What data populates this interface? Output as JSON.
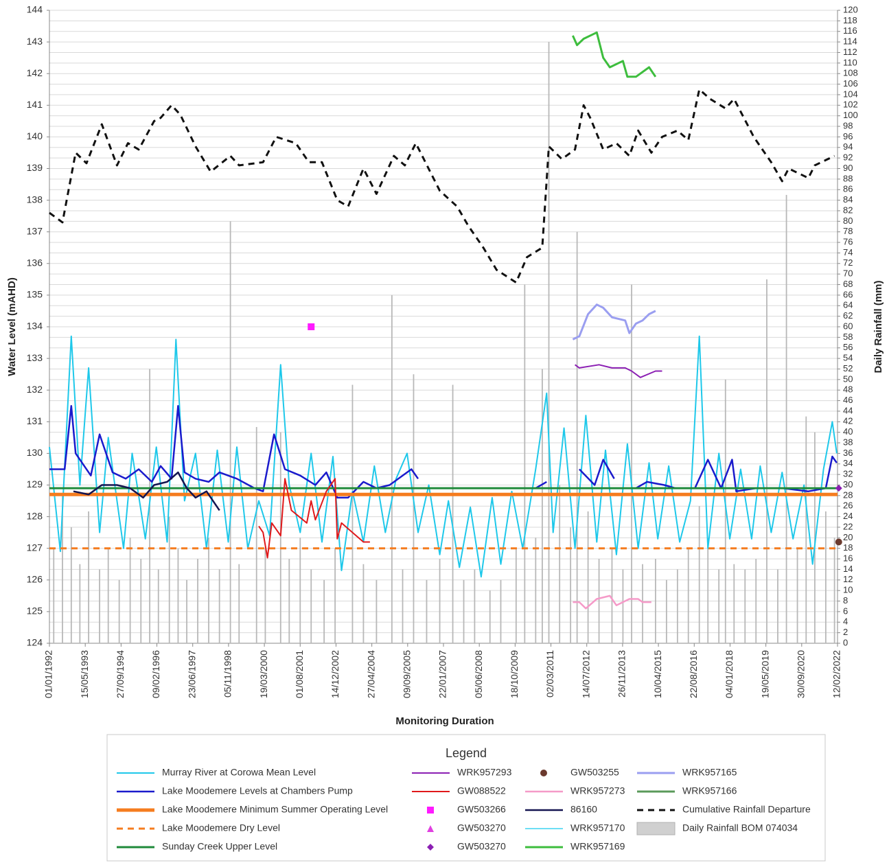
{
  "chart_data": {
    "type": "combo",
    "x_label": "Monitoring Duration",
    "y_label": "Water Level (mAHD)",
    "y2_label": "Daily Rainfall (mm)",
    "legend_title": "Legend",
    "xlim": [
      "01/01/1992",
      "12/02/2022"
    ],
    "xticks": [
      "01/01/1992",
      "15/05/1993",
      "27/09/1994",
      "09/02/1996",
      "23/06/1997",
      "05/11/1998",
      "19/03/2000",
      "01/08/2001",
      "14/12/2002",
      "27/04/2004",
      "09/09/2005",
      "22/01/2007",
      "05/06/2008",
      "18/10/2009",
      "02/03/2011",
      "14/07/2012",
      "26/11/2013",
      "10/04/2015",
      "22/08/2016",
      "04/01/2018",
      "19/05/2019",
      "30/09/2020",
      "12/02/2022"
    ],
    "ylim": [
      124,
      144
    ],
    "yticks": [
      124,
      125,
      126,
      127,
      128,
      129,
      130,
      131,
      132,
      133,
      134,
      135,
      136,
      137,
      138,
      139,
      140,
      141,
      142,
      143,
      144
    ],
    "y2lim": [
      0,
      120
    ],
    "y2ticks": [
      0,
      2,
      4,
      6,
      8,
      10,
      12,
      14,
      16,
      18,
      20,
      22,
      24,
      26,
      28,
      30,
      32,
      34,
      36,
      38,
      40,
      42,
      44,
      46,
      48,
      50,
      52,
      54,
      56,
      58,
      60,
      62,
      64,
      66,
      68,
      70,
      72,
      74,
      76,
      78,
      80,
      82,
      84,
      86,
      88,
      90,
      92,
      94,
      96,
      98,
      100,
      102,
      104,
      106,
      108,
      110,
      112,
      114,
      116,
      118,
      120
    ],
    "grid": true,
    "series": [
      {
        "name": "Murray River at Corowa Mean Level",
        "kind": "line",
        "color": "#1ec8ea",
        "width": 2,
        "x": [
          "01/01/1992",
          "01/06/1992",
          "01/11/1992",
          "01/03/1993",
          "01/07/1993",
          "01/12/1993",
          "01/04/1994",
          "01/11/1994",
          "01/03/1995",
          "01/09/1995",
          "01/02/1996",
          "01/07/1996",
          "01/11/1996",
          "01/03/1997",
          "01/08/1997",
          "01/01/1998",
          "01/06/1998",
          "01/11/1998",
          "01/03/1999",
          "01/08/1999",
          "01/01/2000",
          "01/06/2000",
          "01/11/2000",
          "01/03/2001",
          "01/08/2001",
          "01/01/2002",
          "01/06/2002",
          "01/11/2002",
          "01/03/2003",
          "01/08/2003",
          "01/01/2004",
          "01/06/2004",
          "01/11/2004",
          "01/04/2005",
          "01/09/2005",
          "01/02/2006",
          "01/07/2006",
          "01/12/2006",
          "01/04/2007",
          "01/09/2007",
          "01/02/2008",
          "01/07/2008",
          "01/12/2008",
          "01/04/2009",
          "01/09/2009",
          "01/02/2010",
          "01/08/2010",
          "01/01/2011",
          "01/04/2011",
          "01/09/2011",
          "01/02/2012",
          "01/07/2012",
          "01/12/2012",
          "01/04/2013",
          "01/09/2013",
          "01/02/2014",
          "01/07/2014",
          "01/12/2014",
          "01/04/2015",
          "01/09/2015",
          "01/02/2016",
          "01/07/2016",
          "01/11/2016",
          "01/03/2017",
          "01/08/2017",
          "01/01/2018",
          "01/06/2018",
          "01/11/2018",
          "01/03/2019",
          "01/08/2019",
          "01/01/2020",
          "01/06/2020",
          "01/11/2020",
          "01/03/2021",
          "01/08/2021",
          "01/12/2021",
          "01/02/2022"
        ],
        "values": [
          130.2,
          126.9,
          133.7,
          129,
          132.7,
          127.5,
          130.5,
          127,
          130,
          127.3,
          130.2,
          127.2,
          133.6,
          128.5,
          130,
          127,
          130.1,
          127.2,
          130.2,
          127,
          128.5,
          127.4,
          132.8,
          129,
          127.5,
          130,
          127.2,
          129.9,
          126.3,
          128.8,
          127.2,
          129.6,
          127.5,
          129.2,
          130,
          127.5,
          129,
          126.8,
          128.5,
          126.4,
          128.3,
          126.1,
          128.6,
          126.5,
          128.8,
          127,
          129.5,
          131.9,
          127.5,
          130.8,
          127,
          131.2,
          127.2,
          130.1,
          126.8,
          130.3,
          127,
          129.7,
          127.3,
          129.6,
          127.2,
          128.5,
          133.7,
          127,
          130,
          127.3,
          129.5,
          127.3,
          129.6,
          127.5,
          129.4,
          127.3,
          129,
          126.5,
          129.5,
          131,
          130
        ]
      },
      {
        "name": "Lake Moodemere Levels at Chambers Pump",
        "kind": "line",
        "color": "#1a1acc",
        "width": 2.5,
        "x": [
          "01/01/1992",
          "01/08/1992",
          "01/11/1992",
          "01/01/1993",
          "01/08/1993",
          "01/12/1993",
          "01/06/1994",
          "01/12/1994",
          "01/06/1995",
          "01/12/1995",
          "01/04/1996",
          "01/09/1996",
          "01/12/1996",
          "01/03/1997",
          "01/08/1997",
          "01/02/1998",
          "01/07/1998",
          "01/03/1999",
          "01/11/1999",
          "01/03/2000",
          "01/08/2000",
          "01/01/2001",
          "01/08/2001",
          "01/03/2002",
          "01/08/2002",
          "01/01/2003",
          "01/06/2003",
          "01/01/2004",
          "01/07/2004",
          "01/01/2005",
          "01/07/2005",
          "01/11/2005",
          "01/02/2006",
          "01/01/2008",
          "01/08/2010",
          "01/01/2011",
          "01/07/2011",
          "01/04/2012",
          "01/11/2012",
          "01/03/2013",
          "01/08/2013",
          "01/01/2014",
          "01/06/2014",
          "01/11/2014",
          "01/07/2015",
          "01/12/2015",
          "01/09/2016",
          "01/03/2017",
          "01/09/2017",
          "01/02/2018",
          "01/04/2018",
          "01/01/2019",
          "01/01/2020",
          "01/01/2021",
          "01/09/2021",
          "01/12/2021",
          "01/02/2022"
        ],
        "values": [
          129.5,
          129.5,
          131.5,
          130,
          129.3,
          130.6,
          129.4,
          129.2,
          129.5,
          129.1,
          129.6,
          129.2,
          131.5,
          129.4,
          129.2,
          129.1,
          129.4,
          129.2,
          128.9,
          128.8,
          130.6,
          129.5,
          129.3,
          129,
          129.4,
          128.6,
          128.6,
          129.1,
          128.9,
          129,
          129.3,
          129.5,
          129.2,
          null,
          128.9,
          129.1,
          null,
          129.5,
          129,
          129.8,
          129.2,
          null,
          128.9,
          129.1,
          129,
          128.9,
          128.9,
          129.8,
          128.9,
          129.8,
          128.8,
          128.9,
          128.9,
          128.8,
          128.9,
          129.9,
          129.7
        ]
      },
      {
        "name": "Lake Moodemere Minimum Summer Operating Level",
        "kind": "line",
        "color": "#f57c1f",
        "width": 5,
        "x": [
          "01/01/1992",
          "12/02/2022"
        ],
        "values": [
          128.7,
          128.7
        ]
      },
      {
        "name": "Lake Moodemere Dry Level",
        "kind": "line",
        "color": "#f57c1f",
        "width": 3,
        "dash": "dashed",
        "x": [
          "01/01/1992",
          "12/02/2022"
        ],
        "values": [
          127,
          127
        ]
      },
      {
        "name": "Sunday Creek Upper Level",
        "kind": "line",
        "color": "#1f8a3a",
        "width": 3,
        "x": [
          "01/01/1992",
          "12/02/2022"
        ],
        "values": [
          128.9,
          128.9
        ]
      },
      {
        "name": "WRK957293",
        "kind": "line",
        "color": "#8b1fb3",
        "width": 2,
        "x": [
          "01/02/2012",
          "01/04/2012",
          "01/01/2013",
          "01/07/2013",
          "01/01/2014",
          "01/04/2014",
          "01/08/2014",
          "01/03/2015",
          "01/06/2015"
        ],
        "values": [
          132.8,
          132.7,
          132.8,
          132.7,
          132.7,
          132.6,
          132.4,
          132.6,
          132.6
        ]
      },
      {
        "name": "GW088522",
        "kind": "line",
        "color": "#e0181a",
        "width": 2,
        "x": [
          "01/01/2000",
          "01/03/2000",
          "01/05/2000",
          "01/07/2000",
          "01/11/2000",
          "01/01/2001",
          "01/04/2001",
          "01/11/2001",
          "01/01/2002",
          "01/03/2002",
          "01/08/2002",
          "01/12/2002",
          "01/01/2003",
          "01/03/2003",
          "01/01/2004",
          "01/04/2004"
        ],
        "values": [
          127.7,
          127.5,
          126.7,
          127.8,
          127.4,
          129.2,
          128.2,
          127.8,
          128.5,
          127.9,
          128.8,
          129.2,
          127.3,
          127.8,
          127.2,
          127.2
        ]
      },
      {
        "name": "GW503266",
        "kind": "marker",
        "shape": "square",
        "color": "#ff1aff",
        "x": [
          "01/01/2002"
        ],
        "values": [
          134
        ]
      },
      {
        "name": "GW503270",
        "kind": "marker",
        "shape": "triangle",
        "color": "#e040e0",
        "x": [],
        "values": []
      },
      {
        "name": "GW503270",
        "kind": "marker",
        "shape": "diamond",
        "color": "#8b1fb3",
        "x": [
          "01/03/2022"
        ],
        "values": [
          128.9
        ]
      },
      {
        "name": "GW503255",
        "kind": "marker",
        "shape": "circle",
        "color": "#6b3a2e",
        "x": [
          "01/03/2022"
        ],
        "values": [
          127.2
        ]
      },
      {
        "name": "WRK957273",
        "kind": "line",
        "color": "#f59ac8",
        "width": 2.5,
        "x": [
          "01/01/2012",
          "01/04/2012",
          "01/07/2012",
          "01/12/2012",
          "01/06/2013",
          "01/09/2013",
          "01/03/2014",
          "01/07/2014",
          "01/09/2014",
          "01/01/2015"
        ],
        "values": [
          125.3,
          125.3,
          125.1,
          125.4,
          125.5,
          125.2,
          125.4,
          125.4,
          125.3,
          125.3
        ]
      },
      {
        "name": "86160",
        "kind": "line",
        "color": "#141450",
        "width": 2.5,
        "x": [
          "01/12/1992",
          "01/07/1993",
          "01/01/1994",
          "01/08/1994",
          "01/02/1995",
          "01/08/1995",
          "01/01/1996",
          "01/07/1996",
          "01/12/1996",
          "01/04/1997",
          "01/08/1997",
          "01/01/1998",
          "01/07/1998"
        ],
        "values": [
          128.8,
          128.7,
          129,
          129,
          128.9,
          128.6,
          129,
          129.1,
          129.4,
          128.9,
          128.6,
          128.8,
          128.2
        ]
      },
      {
        "name": "WRK957170",
        "kind": "line",
        "color": "#3dd4f0",
        "width": 1.5,
        "x": [],
        "values": []
      },
      {
        "name": "WRK957169",
        "kind": "line",
        "color": "#3dbd3d",
        "width": 3,
        "x": [
          "01/01/2012",
          "01/03/2012",
          "01/06/2012",
          "01/12/2012",
          "01/03/2013",
          "01/06/2013",
          "01/12/2013",
          "01/02/2014",
          "01/06/2014",
          "01/12/2014",
          "01/03/2015"
        ],
        "values": [
          143.2,
          142.9,
          143.1,
          143.3,
          142.5,
          142.2,
          142.4,
          141.9,
          141.9,
          142.2,
          141.9
        ]
      },
      {
        "name": "WRK957165",
        "kind": "line",
        "color": "#9a9ef0",
        "width": 3,
        "x": [
          "01/01/2012",
          "01/04/2012",
          "01/08/2012",
          "01/12/2012",
          "01/03/2013",
          "01/07/2013",
          "01/01/2014",
          "01/03/2014",
          "01/06/2014",
          "01/09/2014",
          "01/12/2014",
          "01/03/2015"
        ],
        "values": [
          133.6,
          133.7,
          134.4,
          134.7,
          134.6,
          134.3,
          134.2,
          133.8,
          134.1,
          134.2,
          134.4,
          134.5
        ]
      },
      {
        "name": "WRK957166",
        "kind": "line",
        "color": "#5a9a5a",
        "width": 3,
        "x": [],
        "values": []
      },
      {
        "name": "Cumulative Rainfall Departure",
        "kind": "line",
        "color": "#111111",
        "width": 3,
        "dash": "dashed",
        "axis": "y2",
        "x": [
          "01/01/1992",
          "01/07/1992",
          "01/01/1993",
          "01/06/1993",
          "01/01/1994",
          "01/08/1994",
          "01/01/1995",
          "01/06/1995",
          "01/01/1996",
          "01/04/1996",
          "01/09/1996",
          "01/01/1997",
          "01/08/1997",
          "01/03/1998",
          "01/12/1998",
          "01/04/1999",
          "01/03/2000",
          "01/09/2000",
          "01/06/2001",
          "01/12/2001",
          "01/06/2002",
          "01/01/2003",
          "01/06/2003",
          "01/01/2004",
          "01/07/2004",
          "01/03/2005",
          "01/08/2005",
          "01/01/2006",
          "01/12/2006",
          "01/08/2007",
          "01/01/2008",
          "01/08/2008",
          "01/02/2009",
          "01/11/2009",
          "01/04/2010",
          "01/11/2010",
          "01/02/2011",
          "01/08/2011",
          "01/02/2012",
          "01/06/2012",
          "01/09/2012",
          "01/03/2013",
          "01/09/2013",
          "01/03/2014",
          "01/07/2014",
          "01/01/2015",
          "01/06/2015",
          "01/01/2016",
          "01/06/2016",
          "01/11/2016",
          "01/04/2017",
          "01/11/2017",
          "01/03/2018",
          "01/12/2018",
          "01/03/2019",
          "01/08/2019",
          "01/01/2020",
          "01/04/2020",
          "01/01/2021",
          "01/04/2021",
          "01/01/2022"
        ],
        "values": [
          81.6,
          79.8,
          93,
          91,
          98.4,
          90.6,
          94.8,
          93.6,
          99,
          99.6,
          102,
          100.2,
          94.2,
          89.4,
          92.4,
          90.6,
          91.2,
          96,
          94.8,
          91.2,
          91.2,
          84,
          82.8,
          90,
          85.2,
          92.4,
          90.6,
          94.8,
          85.8,
          82.8,
          79.2,
          75,
          70.8,
          68.4,
          73.2,
          75,
          94.2,
          91.8,
          93.6,
          102,
          99.6,
          93.6,
          94.8,
          92.4,
          97.2,
          93,
          96,
          97.2,
          95.4,
          105,
          103.2,
          101.4,
          103.2,
          96,
          94.2,
          91.2,
          87.6,
          90,
          88.2,
          90.6,
          92.4
        ]
      },
      {
        "name": "Daily Rainfall BOM 074034",
        "kind": "bar",
        "color": "#b8b8b8",
        "axis": "y2",
        "x": [
          "01/03/1992",
          "01/07/1992",
          "01/11/1992",
          "01/03/1993",
          "01/07/1993",
          "01/12/1993",
          "01/04/1994",
          "01/09/1994",
          "01/02/1995",
          "01/07/1995",
          "01/11/1995",
          "01/03/1996",
          "01/08/1996",
          "01/12/1996",
          "01/04/1997",
          "01/09/1997",
          "01/02/1998",
          "01/07/1998",
          "01/12/1998",
          "01/04/1999",
          "01/12/1999",
          "01/04/2000",
          "01/11/2000",
          "01/03/2001",
          "01/08/2001",
          "01/01/2002",
          "01/07/2002",
          "01/12/2002",
          "01/08/2003",
          "01/01/2004",
          "01/07/2004",
          "01/02/2005",
          "01/07/2005",
          "01/12/2005",
          "01/06/2006",
          "01/12/2006",
          "01/06/2007",
          "01/11/2007",
          "01/04/2008",
          "01/11/2008",
          "01/04/2009",
          "01/11/2009",
          "01/03/2010",
          "01/08/2010",
          "01/11/2010",
          "01/02/2011",
          "01/07/2011",
          "01/12/2011",
          "01/03/2012",
          "01/08/2012",
          "01/01/2013",
          "01/07/2013",
          "01/12/2013",
          "01/04/2014",
          "01/09/2014",
          "01/03/2015",
          "01/08/2015",
          "01/01/2016",
          "01/06/2016",
          "01/11/2016",
          "01/03/2017",
          "01/08/2017",
          "01/11/2017",
          "01/03/2018",
          "01/08/2018",
          "01/01/2019",
          "01/06/2019",
          "01/11/2019",
          "01/03/2020",
          "01/08/2020",
          "01/12/2020",
          "01/04/2021",
          "01/09/2021",
          "01/01/2022"
        ],
        "values": [
          18,
          28,
          22,
          15,
          25,
          14,
          18,
          12,
          20,
          16,
          52,
          14,
          24,
          18,
          12,
          16,
          20,
          14,
          80,
          15,
          41,
          18,
          40,
          16,
          20,
          14,
          12,
          18,
          49,
          15,
          12,
          66,
          14,
          51,
          12,
          16,
          49,
          12,
          14,
          10,
          12,
          18,
          68,
          20,
          52,
          114,
          30,
          22,
          78,
          25,
          16,
          18,
          14,
          68,
          15,
          16,
          12,
          14,
          18,
          26,
          20,
          14,
          50,
          15,
          14,
          16,
          69,
          14,
          85,
          18,
          43,
          40,
          25,
          20
        ]
      }
    ]
  }
}
